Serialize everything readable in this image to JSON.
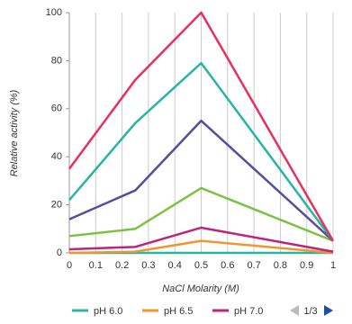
{
  "chart_data": {
    "type": "line",
    "x_label": "NaCl Molarity (M)",
    "y_label": "Relative activity (%)",
    "x": [
      0,
      0.25,
      0.5,
      1
    ],
    "series": [
      {
        "name": "pH 6.0",
        "color": "#2bb5a8",
        "values": [
          0,
          0,
          0,
          0
        ]
      },
      {
        "name": "pH 6.5",
        "color": "#f0962e",
        "values": [
          0,
          0.5,
          5,
          0
        ]
      },
      {
        "name": "pH 7.0",
        "color": "#c0237a",
        "values": [
          1.5,
          2.5,
          10.5,
          0.5
        ]
      },
      {
        "color": "#7cc242",
        "values": [
          7,
          10,
          27,
          5
        ]
      },
      {
        "color": "#5b4a9e",
        "values": [
          14,
          26,
          55,
          5
        ]
      },
      {
        "color": "#26b5a5",
        "values": [
          22,
          54,
          79,
          5
        ]
      },
      {
        "color": "#e8305a",
        "values": [
          35,
          72,
          100,
          5
        ]
      }
    ],
    "xlim": [
      0,
      1
    ],
    "xticks": [
      0,
      0.1,
      0.2,
      0.3,
      0.4,
      0.5,
      0.6,
      0.7,
      0.8,
      0.9,
      1
    ],
    "ylim": [
      0,
      100
    ],
    "yticks": [
      0,
      20,
      40,
      60,
      80,
      100
    ],
    "grid": "x",
    "legend": {
      "position": "bottom",
      "page": "1/3"
    }
  }
}
